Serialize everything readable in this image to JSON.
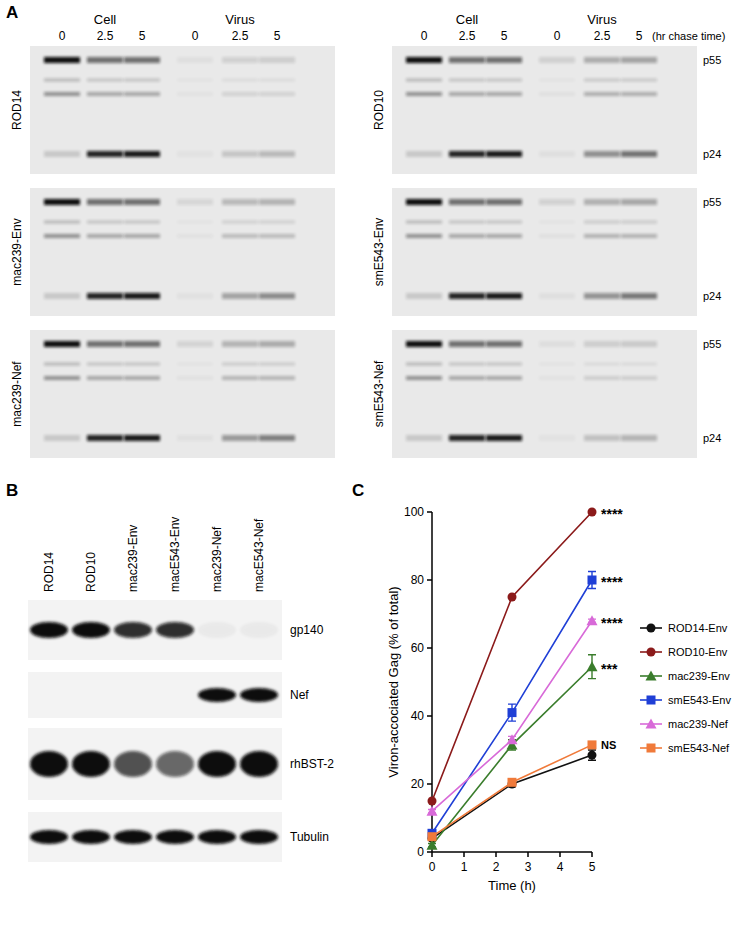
{
  "panel_a": {
    "label": "A",
    "columns": [
      "Cell",
      "Virus"
    ],
    "times": [
      "0",
      "2.5",
      "5"
    ],
    "time_unit": "(hr chase time)",
    "bands": [
      "p55",
      "p24"
    ],
    "gels": [
      "ROD14",
      "ROD10",
      "mac239-Env",
      "smE543-Env",
      "mac239-Nef",
      "smE543-Nef"
    ]
  },
  "panel_b": {
    "label": "B",
    "lanes": [
      "ROD14",
      "ROD10",
      "mac239-Env",
      "macE543-Env",
      "mac239-Nef",
      "macE543-Nef"
    ],
    "rows": [
      "gp140",
      "Nef",
      "rhBST-2",
      "Tubulin"
    ]
  },
  "chart_data": {
    "type": "line",
    "title": "C",
    "x_label": "Time (h)",
    "y_label": "Viron-accociated Gag (% of total)",
    "x": [
      0,
      2.5,
      5
    ],
    "series": [
      {
        "name": "ROD14-Env",
        "color": "#111111",
        "marker": "circle",
        "values": [
          4,
          20,
          28.5
        ],
        "errors": [
          0.5,
          0.8,
          1.5
        ]
      },
      {
        "name": "ROD10-Env",
        "color": "#8b1a1a",
        "marker": "circle",
        "values": [
          15,
          75,
          100
        ],
        "errors": [
          0,
          0,
          0
        ]
      },
      {
        "name": "mac239-Env",
        "color": "#3a7d2c",
        "marker": "triangle",
        "values": [
          2,
          31.5,
          54.5
        ],
        "errors": [
          0.5,
          1.5,
          3.5
        ]
      },
      {
        "name": "smE543-Env",
        "color": "#1f3fd6",
        "marker": "square",
        "values": [
          5.5,
          41,
          80
        ],
        "errors": [
          1,
          2.5,
          2.5
        ]
      },
      {
        "name": "mac239-Nef",
        "color": "#d86ad8",
        "marker": "triangle",
        "values": [
          12,
          33,
          68
        ],
        "errors": [
          0.5,
          1,
          0.5
        ]
      },
      {
        "name": "smE543-Nef",
        "color": "#f07a3a",
        "marker": "square",
        "values": [
          4.5,
          20.5,
          31.5
        ],
        "errors": [
          0.3,
          0.5,
          0.5
        ]
      }
    ],
    "annotations": [
      {
        "text": "****",
        "x": 5,
        "y": 100
      },
      {
        "text": "****",
        "x": 5,
        "y": 80
      },
      {
        "text": "****",
        "x": 5,
        "y": 68
      },
      {
        "text": "***",
        "x": 5,
        "y": 54.5
      },
      {
        "text": "NS",
        "x": 5,
        "y": 31.5
      }
    ],
    "xlim": [
      0,
      5
    ],
    "xticks": [
      0,
      1,
      2,
      3,
      4,
      5
    ],
    "ylim": [
      0,
      100
    ],
    "yticks": [
      0,
      20,
      40,
      60,
      80,
      100
    ],
    "grid": false,
    "legend": "right"
  }
}
